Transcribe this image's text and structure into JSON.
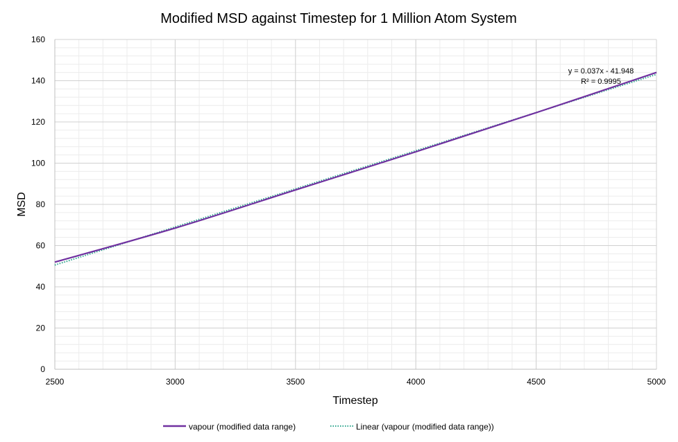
{
  "chart_data": {
    "type": "line",
    "title": "Modified MSD against Timestep for 1 Million Atom System",
    "xlabel": "Timestep",
    "ylabel": "MSD",
    "xlim": [
      2500,
      5000
    ],
    "ylim": [
      0,
      160
    ],
    "xticks": [
      2500,
      3000,
      3500,
      4000,
      4500,
      5000
    ],
    "yticks": [
      0,
      20,
      40,
      60,
      80,
      100,
      120,
      140,
      160
    ],
    "grid": true,
    "legend_position": "bottom",
    "series": [
      {
        "name": "vapour (modified data range)",
        "color": "#7030a0",
        "style": "solid",
        "x": [
          2500,
          3000,
          3500,
          4000,
          4500,
          5000
        ],
        "y": [
          52,
          68.5,
          87,
          105.5,
          124.5,
          144
        ]
      },
      {
        "name": "Linear (vapour (modified data range))",
        "color": "#2ca58d",
        "style": "dotted",
        "type": "trendline",
        "slope": 0.037,
        "intercept": -41.948,
        "x": [
          2500,
          5000
        ],
        "y": [
          50.55,
          143.05
        ]
      }
    ],
    "annotations": {
      "equation": "y = 0.037x - 41.948",
      "r_squared": "R² = 0.9995"
    }
  }
}
